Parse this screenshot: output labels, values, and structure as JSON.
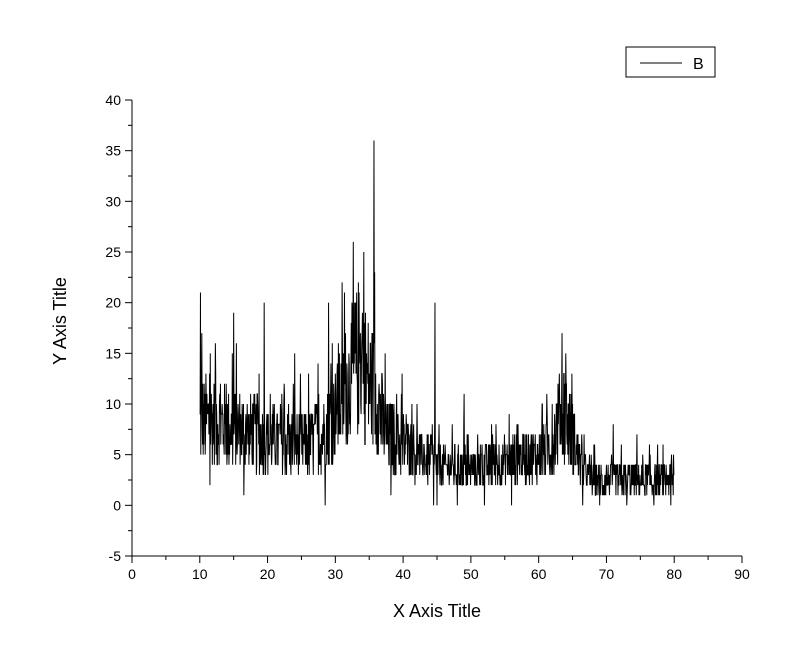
{
  "chart_data": {
    "type": "line",
    "xlabel": "X Axis Title",
    "ylabel": "Y Axis Title",
    "xlim": [
      0,
      90
    ],
    "ylim": [
      -5,
      40
    ],
    "xticks": [
      0,
      10,
      20,
      30,
      40,
      50,
      60,
      70,
      80,
      90
    ],
    "yticks": [
      -5,
      0,
      5,
      10,
      15,
      20,
      25,
      30,
      35,
      40
    ],
    "grid": false,
    "legend_position": "top-right",
    "line_color": "#000000",
    "series": [
      {
        "name": "B",
        "x_range": [
          10,
          80
        ],
        "x_step": 0.05,
        "profile": [
          [
            10,
            8
          ],
          [
            11,
            8.5
          ],
          [
            13,
            8
          ],
          [
            15,
            7.5
          ],
          [
            18,
            7
          ],
          [
            20,
            6.5
          ],
          [
            23,
            6
          ],
          [
            26,
            6
          ],
          [
            28,
            7
          ],
          [
            30,
            9
          ],
          [
            32,
            12
          ],
          [
            33.5,
            14.5
          ],
          [
            35,
            12
          ],
          [
            36,
            11
          ],
          [
            37.5,
            7
          ],
          [
            40,
            6
          ],
          [
            42,
            5
          ],
          [
            45,
            4
          ],
          [
            50,
            3.5
          ],
          [
            53,
            4
          ],
          [
            56,
            4.5
          ],
          [
            60,
            5
          ],
          [
            62,
            6
          ],
          [
            63.5,
            10
          ],
          [
            65,
            7
          ],
          [
            66,
            4
          ],
          [
            68,
            2.5
          ],
          [
            72,
            2.5
          ],
          [
            76,
            2.5
          ],
          [
            80,
            2.5
          ]
        ],
        "spikes": [
          [
            10.1,
            21
          ],
          [
            10.3,
            17
          ],
          [
            11.5,
            17
          ],
          [
            12.3,
            16
          ],
          [
            15,
            19
          ],
          [
            19.5,
            20
          ],
          [
            24,
            15
          ],
          [
            29,
            20
          ],
          [
            31,
            22
          ],
          [
            34,
            19
          ],
          [
            35.7,
            36
          ],
          [
            35.8,
            23
          ],
          [
            44.7,
            20
          ],
          [
            49,
            11
          ],
          [
            60.5,
            10
          ],
          [
            64,
            15
          ],
          [
            71,
            8
          ],
          [
            74.5,
            7
          ],
          [
            79.9,
            5
          ]
        ],
        "dips": [
          [
            11.5,
            2
          ],
          [
            16.5,
            1
          ],
          [
            28.5,
            0
          ],
          [
            38.2,
            1
          ],
          [
            44.5,
            0
          ],
          [
            45,
            0
          ],
          [
            48,
            0
          ],
          [
            52,
            0
          ],
          [
            56,
            0
          ],
          [
            66.5,
            0
          ],
          [
            69,
            0
          ],
          [
            73,
            0
          ],
          [
            77,
            0
          ],
          [
            79.5,
            0
          ]
        ]
      }
    ]
  }
}
